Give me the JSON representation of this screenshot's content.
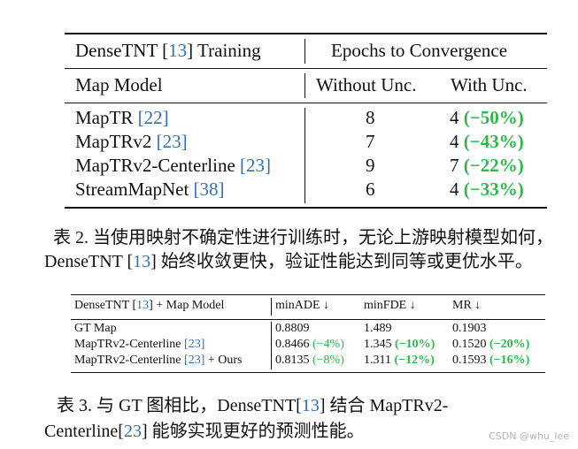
{
  "table2": {
    "header_left_prefix": "DenseTNT [",
    "header_left_cite": "13",
    "header_left_suffix": "] Training",
    "header_right": "Epochs to Convergence",
    "col_model": "Map Model",
    "col_without": "Without Unc.",
    "col_with": "With Unc.",
    "rows": [
      {
        "model": "MapTR ",
        "cite": "[22]",
        "without": "8",
        "with": "4",
        "delta": "(−50%)"
      },
      {
        "model": "MapTRv2 ",
        "cite": "[23]",
        "without": "7",
        "with": "4",
        "delta": "(−43%)"
      },
      {
        "model": "MapTRv2-Centerline ",
        "cite": "[23]",
        "without": "9",
        "with": "7",
        "delta": "(−22%)"
      },
      {
        "model": "StreamMapNet ",
        "cite": "[38]",
        "without": "6",
        "with": "4",
        "delta": "(−33%)"
      }
    ],
    "caption_line1": "表 2. 当使用映射不确定性进行训练时，无论上游映射模型如何，",
    "caption_line2_prefix": "DenseTNT [",
    "caption_line2_cite": "13",
    "caption_line2_suffix": "] 始终收敛更快，验证性能达到同等或更优水平。"
  },
  "table3": {
    "header_model_prefix": "DenseTNT [",
    "header_model_cite": "13",
    "header_model_suffix": "] + Map Model",
    "col_minade": "minADE ↓",
    "col_minfde": "minFDE ↓",
    "col_mr": "MR ↓",
    "rows": [
      {
        "model": "GT Map",
        "cite": "",
        "suffix": "",
        "minade": "0.8809",
        "minade_delta": "",
        "minfde": "1.489",
        "minfde_delta": "",
        "mr": "0.1903",
        "mr_delta": ""
      },
      {
        "model": "MapTRv2-Centerline ",
        "cite": "[23]",
        "suffix": "",
        "minade": "0.8466 ",
        "minade_delta": "(−4%)",
        "minfde": "1.345 ",
        "minfde_delta": "(−10%)",
        "mr": "0.1520 ",
        "mr_delta": "(−20%)"
      },
      {
        "model": "MapTRv2-Centerline ",
        "cite": "[23]",
        "suffix": " + Ours",
        "minade": "0.8135 ",
        "minade_delta": "(−8%)",
        "minfde": "1.311 ",
        "minfde_delta": "(−12%)",
        "mr": "0.1593 ",
        "mr_delta": "(−16%)"
      }
    ],
    "caption_line1_prefix": "表 3.   与 GT 图相比，DenseTNT[",
    "caption_line1_cite": "13",
    "caption_line1_suffix": "] 结合 MapTRv2-",
    "caption_line2_prefix": "Centerline[",
    "caption_line2_cite": "23",
    "caption_line2_suffix": "] 能够实现更好的预测性能。"
  },
  "watermark": "CSDN @whu_lee"
}
